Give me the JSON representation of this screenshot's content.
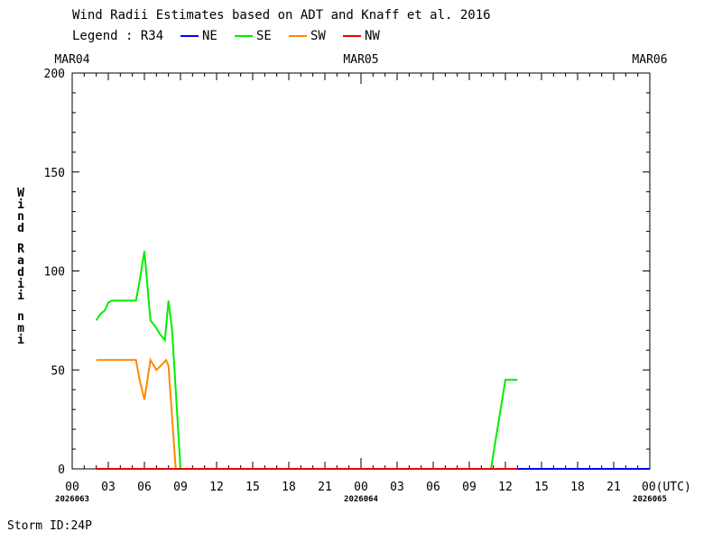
{
  "chart_data": {
    "type": "line",
    "title": "Wind Radii Estimates based on ADT and Knaff et al. 2016",
    "legend": {
      "label": "Legend : R34",
      "entries": [
        {
          "name": "NE",
          "color": "#0000ff"
        },
        {
          "name": "SE",
          "color": "#00ee00"
        },
        {
          "name": "SW",
          "color": "#ff8800"
        },
        {
          "name": "NW",
          "color": "#ee0000"
        }
      ],
      "placement": "top-left"
    },
    "ylabel": "Wind Radii nmi",
    "ylim": [
      0,
      200
    ],
    "y_ticks": [
      0,
      50,
      100,
      150,
      200
    ],
    "xlim_hours": [
      0,
      48
    ],
    "x_tick_labels": [
      "00",
      "03",
      "06",
      "09",
      "12",
      "15",
      "18",
      "21",
      "00",
      "03",
      "06",
      "09",
      "12",
      "15",
      "18",
      "21",
      "00(UTC)"
    ],
    "date_labels": [
      "MAR04",
      "MAR05",
      "MAR06"
    ],
    "julian_labels": [
      "2026063",
      "2026064",
      "2026065"
    ],
    "grid": false,
    "series": [
      {
        "name": "NE",
        "color": "#0000ff",
        "x": [
          2.0,
          48.0
        ],
        "values": [
          0,
          0
        ]
      },
      {
        "name": "SE",
        "color": "#00ee00",
        "x": [
          2.0,
          2.3,
          2.7,
          3.0,
          3.3,
          5.0,
          5.3,
          5.6,
          6.0,
          6.5,
          6.9,
          7.3,
          7.7,
          8.0,
          8.3,
          9.0,
          10.0,
          14.0,
          20.0,
          26.0,
          30.0,
          32.0,
          34.0,
          34.8,
          36.0,
          36.5,
          37.0
        ],
        "values": [
          75,
          78,
          80,
          84,
          85,
          85,
          85,
          95,
          110,
          75,
          72,
          68,
          65,
          85,
          70,
          0,
          0,
          0,
          0,
          0,
          0,
          0,
          0,
          0,
          45,
          45,
          45
        ]
      },
      {
        "name": "SW",
        "color": "#ff8800",
        "x": [
          2.0,
          2.5,
          3.0,
          4.0,
          5.0,
          5.3,
          5.6,
          6.0,
          6.5,
          7.0,
          7.5,
          7.8,
          8.0,
          8.6,
          9.5,
          14.0,
          20.0,
          26.0,
          30.0,
          34.0,
          36.0,
          37.0
        ],
        "values": [
          55,
          55,
          55,
          55,
          55,
          55,
          45,
          35,
          55,
          50,
          53,
          55,
          52,
          0,
          0,
          0,
          0,
          0,
          0,
          0,
          0,
          0
        ]
      },
      {
        "name": "NW",
        "color": "#ee0000",
        "x": [
          2.0,
          37.0
        ],
        "values": [
          0,
          0
        ]
      }
    ]
  },
  "footer": {
    "storm_id": "Storm ID:24P"
  }
}
